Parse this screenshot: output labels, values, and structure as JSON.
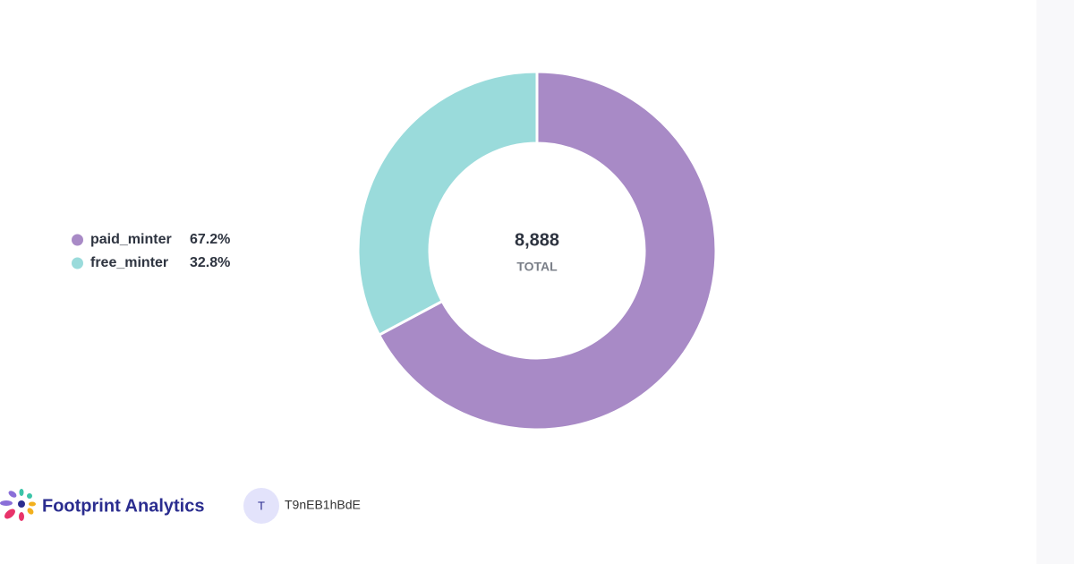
{
  "chart_data": {
    "type": "pie",
    "donut": true,
    "categories": [
      "paid_minter",
      "free_minter"
    ],
    "values": [
      67.2,
      32.8
    ],
    "value_labels": [
      "67.2%",
      "32.8%"
    ],
    "colors": [
      "#a88ac6",
      "#9adbdb"
    ],
    "total": {
      "value": 8888,
      "label": "8,888"
    },
    "total_label": "TOTAL",
    "legend": "left"
  },
  "footer": {
    "brand": "Footprint Analytics",
    "avatar": "T",
    "user": "T9nEB1hBdE"
  }
}
